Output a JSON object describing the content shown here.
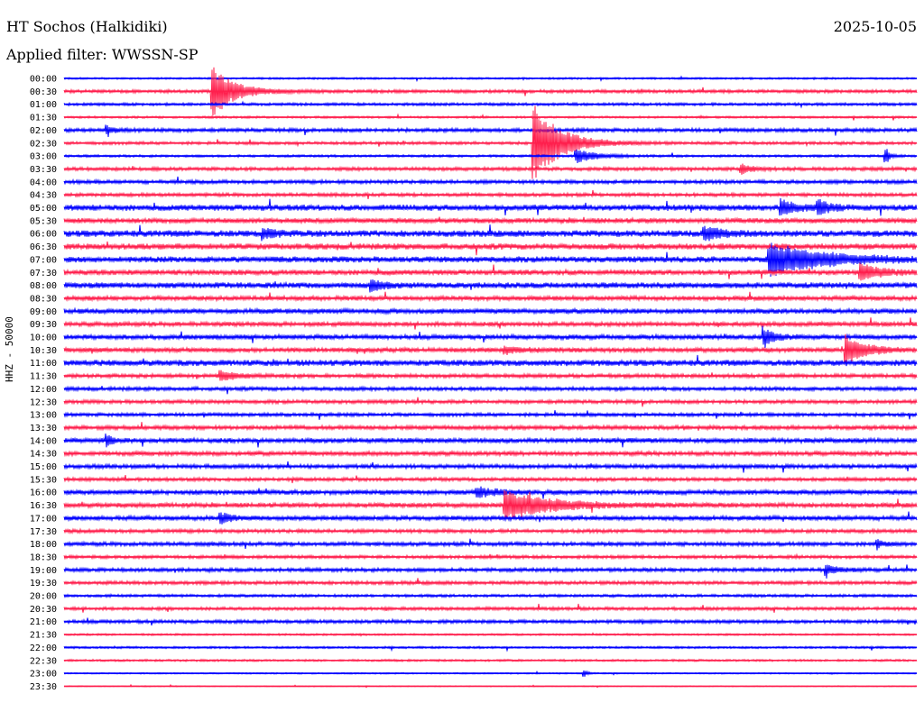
{
  "header": {
    "station": "HT Sochos (Halkidiki)",
    "date": "2025-10-05",
    "filter": "Applied filter: WWSSN-SP"
  },
  "colors": {
    "trace_a": "#0000ff",
    "trace_b": "#ff1f4d",
    "background": "#ffffff"
  },
  "chart_data": {
    "type": "line",
    "ylabel": "HHZ - 50000",
    "rows": [
      "00:00",
      "00:30",
      "01:00",
      "01:30",
      "02:00",
      "02:30",
      "03:00",
      "03:30",
      "04:00",
      "04:30",
      "05:00",
      "05:30",
      "06:00",
      "06:30",
      "07:00",
      "07:30",
      "08:00",
      "08:30",
      "09:00",
      "09:30",
      "10:00",
      "10:30",
      "11:00",
      "11:30",
      "12:00",
      "12:30",
      "13:00",
      "13:30",
      "14:00",
      "14:30",
      "15:00",
      "15:30",
      "16:00",
      "16:30",
      "17:00",
      "17:30",
      "18:00",
      "18:30",
      "19:00",
      "19:30",
      "20:00",
      "20:30",
      "21:00",
      "21:30",
      "22:00",
      "22:30",
      "23:00",
      "23:30"
    ],
    "row_noise": [
      0.8,
      1.4,
      1.2,
      0.9,
      1.6,
      1.3,
      1.0,
      1.5,
      1.6,
      1.5,
      2.6,
      2.2,
      2.8,
      2.6,
      2.6,
      2.3,
      2.5,
      2.0,
      2.2,
      1.9,
      2.1,
      2.0,
      2.6,
      1.7,
      1.6,
      1.6,
      1.5,
      1.8,
      2.1,
      1.9,
      1.8,
      1.5,
      2.1,
      2.0,
      2.0,
      1.6,
      1.7,
      1.4,
      1.6,
      1.5,
      1.2,
      1.4,
      1.5,
      0.8,
      0.9,
      0.9,
      0.6,
      0.4
    ],
    "events": [
      {
        "row": "00:30",
        "minute": 5.2,
        "amplitude": 30,
        "duration": 1.6
      },
      {
        "row": "02:30",
        "minute": 16.5,
        "amplitude": 45,
        "duration": 2.0
      },
      {
        "row": "03:00",
        "minute": 18.0,
        "amplitude": 8,
        "duration": 1.5
      },
      {
        "row": "02:00",
        "minute": 1.5,
        "amplitude": 4,
        "duration": 0.8
      },
      {
        "row": "03:00",
        "minute": 28.9,
        "amplitude": 10,
        "duration": 0.3
      },
      {
        "row": "03:30",
        "minute": 23.8,
        "amplitude": 6,
        "duration": 0.8
      },
      {
        "row": "05:00",
        "minute": 25.2,
        "amplitude": 10,
        "duration": 1.0
      },
      {
        "row": "05:00",
        "minute": 26.5,
        "amplitude": 9,
        "duration": 0.8
      },
      {
        "row": "06:00",
        "minute": 22.5,
        "amplitude": 7,
        "duration": 1.5
      },
      {
        "row": "06:00",
        "minute": 7.0,
        "amplitude": 5,
        "duration": 1.0
      },
      {
        "row": "07:00",
        "minute": 24.8,
        "amplitude": 18,
        "duration": 4.0
      },
      {
        "row": "07:30",
        "minute": 28.0,
        "amplitude": 9,
        "duration": 1.5
      },
      {
        "row": "08:00",
        "minute": 10.8,
        "amplitude": 7,
        "duration": 1.0
      },
      {
        "row": "10:00",
        "minute": 24.6,
        "amplitude": 11,
        "duration": 0.8
      },
      {
        "row": "10:30",
        "minute": 27.5,
        "amplitude": 16,
        "duration": 1.5
      },
      {
        "row": "10:30",
        "minute": 15.5,
        "amplitude": 4,
        "duration": 1.5
      },
      {
        "row": "11:30",
        "minute": 5.5,
        "amplitude": 5,
        "duration": 1.2
      },
      {
        "row": "14:00",
        "minute": 1.5,
        "amplitude": 6,
        "duration": 0.5
      },
      {
        "row": "16:30",
        "minute": 15.5,
        "amplitude": 16,
        "duration": 3.5
      },
      {
        "row": "16:00",
        "minute": 14.5,
        "amplitude": 5,
        "duration": 1.5
      },
      {
        "row": "17:00",
        "minute": 5.5,
        "amplitude": 6,
        "duration": 0.8
      },
      {
        "row": "18:00",
        "minute": 28.6,
        "amplitude": 6,
        "duration": 0.4
      },
      {
        "row": "19:00",
        "minute": 26.8,
        "amplitude": 5,
        "duration": 1.0
      },
      {
        "row": "23:00",
        "minute": 18.3,
        "amplitude": 5,
        "duration": 0.2
      }
    ]
  }
}
